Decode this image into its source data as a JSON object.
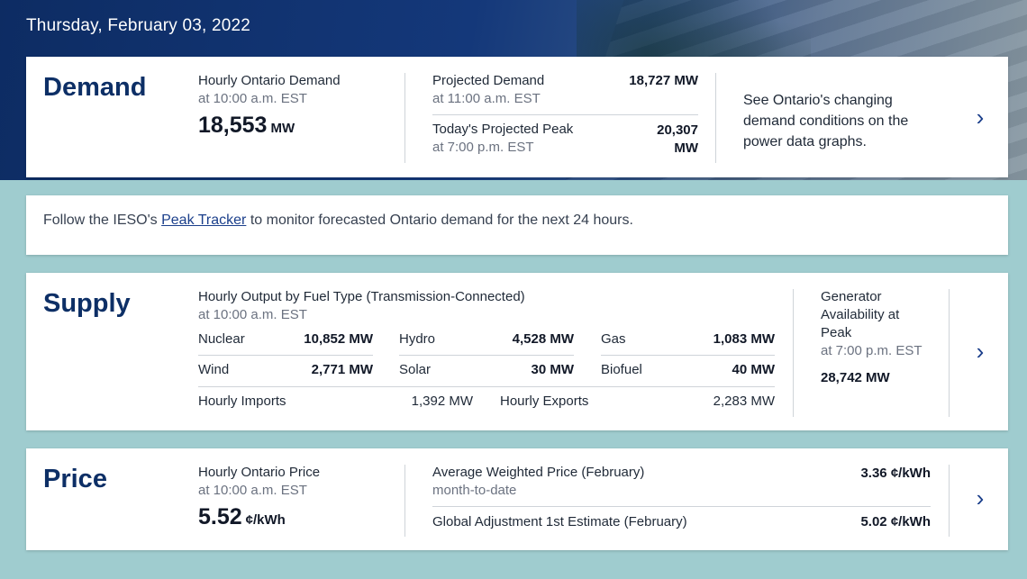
{
  "header": {
    "date": "Thursday, February 03, 2022"
  },
  "demand": {
    "title": "Demand",
    "hourly_label": "Hourly Ontario Demand",
    "hourly_time": "at 10:00 a.m. EST",
    "hourly_value": "18,553",
    "hourly_unit": "MW",
    "projected_label": "Projected Demand",
    "projected_time": "at 11:00 a.m. EST",
    "projected_value": "18,727 MW",
    "peak_label": "Today's Projected Peak",
    "peak_time": "at 7:00 p.m. EST",
    "peak_value_num": "20,307",
    "peak_value_unit": "MW",
    "graphs_text": "See Ontario's changing demand conditions on the power data graphs."
  },
  "notice": {
    "prefix": "Follow the IESO's",
    "link": "Peak Tracker",
    "suffix": "to monitor forecasted Ontario demand for the next 24 hours."
  },
  "supply": {
    "title": "Supply",
    "output_label": "Hourly Output by Fuel Type (Transmission-Connected)",
    "output_time": "at 10:00 a.m. EST",
    "fuels": [
      {
        "name": "Nuclear",
        "value": "10,852 MW"
      },
      {
        "name": "Hydro",
        "value": "4,528 MW"
      },
      {
        "name": "Gas",
        "value": "1,083 MW"
      },
      {
        "name": "Wind",
        "value": "2,771 MW"
      },
      {
        "name": "Solar",
        "value": "30 MW"
      },
      {
        "name": "Biofuel",
        "value": "40 MW"
      }
    ],
    "imports_label": "Hourly Imports",
    "imports_value": "1,392 MW",
    "exports_label": "Hourly Exports",
    "exports_value": "2,283 MW",
    "availability_label_1": "Generator",
    "availability_label_2": "Availability at",
    "availability_label_3": "Peak",
    "availability_time": "at 7:00 p.m. EST",
    "availability_value": "28,742 MW"
  },
  "price": {
    "title": "Price",
    "hourly_label": "Hourly Ontario Price",
    "hourly_time": "at 10:00 a.m. EST",
    "hourly_value": "5.52",
    "hourly_unit": "¢/kWh",
    "avg_label": "Average Weighted Price (February)",
    "avg_sub": "month-to-date",
    "avg_value": "3.36 ¢/kWh",
    "ga_label": "Global Adjustment 1st Estimate (February)",
    "ga_value": "5.02 ¢/kWh"
  },
  "icons": {
    "chevron": "chevron-right-icon"
  },
  "colors": {
    "title": "#0d2f66",
    "link": "#1b3f8b",
    "background": "#9fcccf",
    "hero": "#0d2c63"
  }
}
